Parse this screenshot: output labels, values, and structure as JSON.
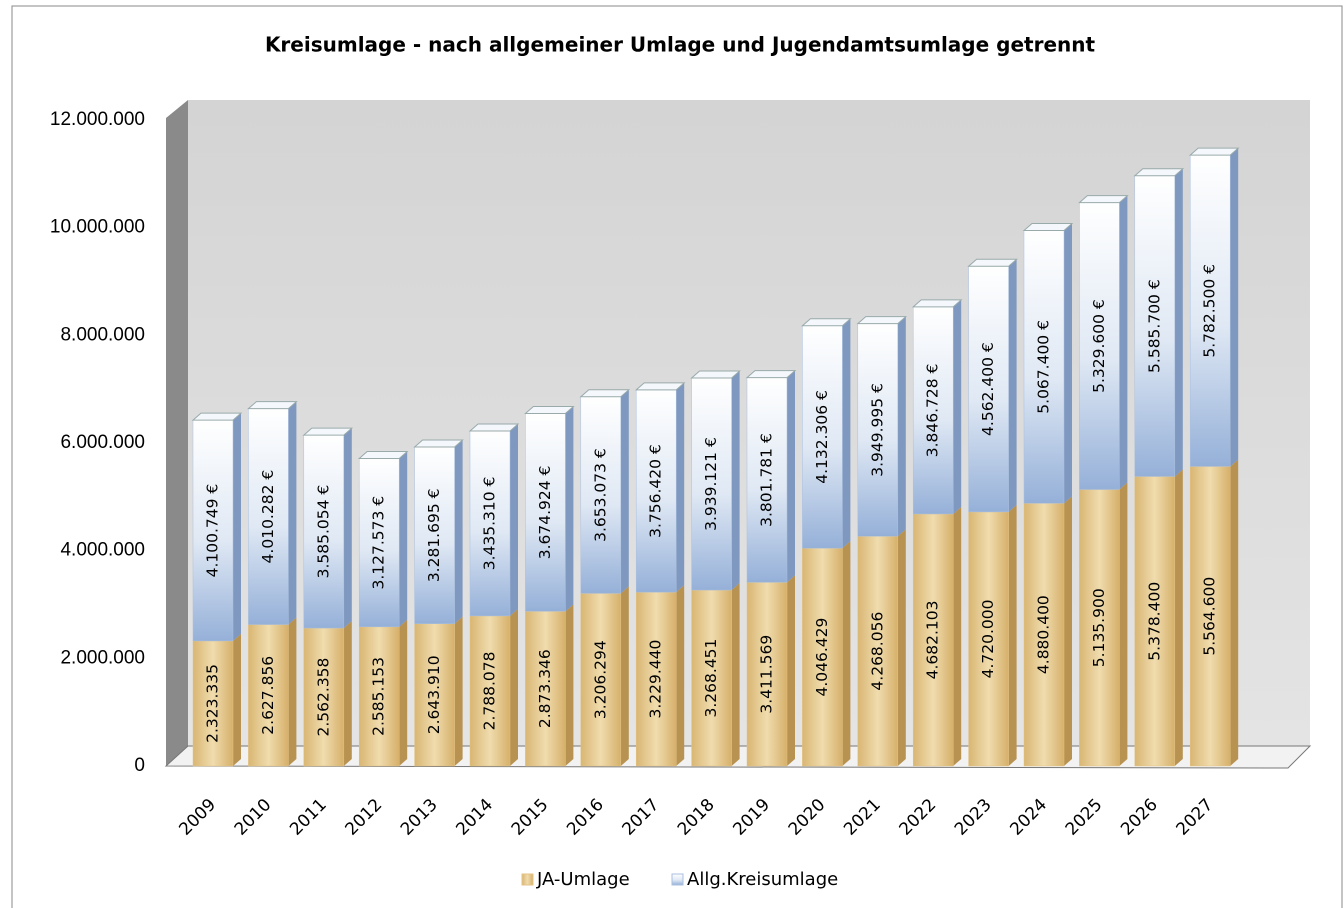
{
  "chart_data": {
    "type": "bar",
    "stacked": true,
    "title": "Kreisumlage - nach allgemeiner Umlage und Jugendamtsumlage getrennt",
    "categories": [
      "2009",
      "2010",
      "2011",
      "2012",
      "2013",
      "2014",
      "2015",
      "2016",
      "2017",
      "2018",
      "2019",
      "2020",
      "2021",
      "2022",
      "2023",
      "2024",
      "2025",
      "2026",
      "2027"
    ],
    "series": [
      {
        "name": "JA-Umlage",
        "color": "#e3c384",
        "values": [
          2323335,
          2627856,
          2562358,
          2585153,
          2643910,
          2788078,
          2873346,
          3206294,
          3229440,
          3268451,
          3411569,
          4046429,
          4268056,
          4682103,
          4720000,
          4880400,
          5135900,
          5378400,
          5564600
        ],
        "value_labels": [
          "2.323.335",
          "2.627.856",
          "2.562.358",
          "2.585.153",
          "2.643.910",
          "2.788.078",
          "2.873.346",
          "3.206.294",
          "3.229.440",
          "3.268.451",
          "3.411.569",
          "4.046.429",
          "4.268.056",
          "4.682.103",
          "4.720.000",
          "4.880.400",
          "5.135.900",
          "5.378.400",
          "5.564.600"
        ]
      },
      {
        "name": "Allg.Kreisumlage",
        "color": "#a9bfdf",
        "values": [
          4100749,
          4010282,
          3585054,
          3127573,
          3281695,
          3435310,
          3674924,
          3653073,
          3756420,
          3939121,
          3801781,
          4132306,
          3949995,
          3846728,
          4562400,
          5067400,
          5329600,
          5585700,
          5782500
        ],
        "value_labels": [
          "4.100.749 €",
          "4.010.282 €",
          "3.585.054 €",
          "3.127.573 €",
          "3.281.695 €",
          "3.435.310 €",
          "3.674.924 €",
          "3.653.073 €",
          "3.756.420 €",
          "3.939.121 €",
          "3.801.781 €",
          "4.132.306 €",
          "3.949.995 €",
          "3.846.728 €",
          "4.562.400 €",
          "5.067.400 €",
          "5.329.600 €",
          "5.585.700 €",
          "5.782.500 €"
        ]
      }
    ],
    "ylim": [
      0,
      12000000
    ],
    "yticks": [
      0,
      {
        "value": 2000000,
        "label": "2.000.000"
      },
      {
        "value": 4000000,
        "label": "4.000.000"
      },
      {
        "value": 6000000,
        "label": "6.000.000"
      },
      {
        "value": 8000000,
        "label": "8.000.000"
      },
      {
        "value": 10000000,
        "label": "10.000.000"
      },
      {
        "value": 12000000,
        "label": "12.000.000"
      }
    ],
    "legend": "bottom"
  }
}
